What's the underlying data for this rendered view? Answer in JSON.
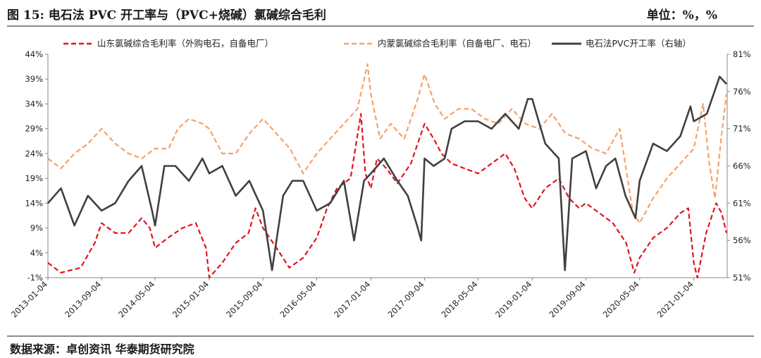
{
  "figure": {
    "title": "图 15:    电石法 PVC 开工率与（PVC+烧碱）氯碱综合毛利",
    "unit": "单位：%，%",
    "source": "数据来源：卓创资讯  华泰期货研究院"
  },
  "chart_data": {
    "type": "line",
    "left_axis": {
      "min": -1,
      "max": 44,
      "ticks": [
        "-1%",
        "4%",
        "9%",
        "14%",
        "19%",
        "24%",
        "29%",
        "34%",
        "39%",
        "44%"
      ]
    },
    "right_axis": {
      "min": 51,
      "max": 81,
      "ticks": [
        "51%",
        "56%",
        "61%",
        "66%",
        "71%",
        "76%",
        "81%"
      ]
    },
    "x_range": [
      "2013-01-04",
      "2021-06-04"
    ],
    "x_ticks": [
      "2013-01-04",
      "2013-09-04",
      "2014-05-04",
      "2015-01-04",
      "2015-09-04",
      "2016-05-04",
      "2017-01-04",
      "2017-09-04",
      "2018-05-04",
      "2019-01-04",
      "2019-09-04",
      "2020-05-04",
      "2021-01-04"
    ],
    "series": [
      {
        "name": "山东氯碱综合毛利率（外购电石，自备电厂）",
        "axis": "left",
        "color": "#e0141e",
        "dash": "dashed",
        "points": [
          [
            "2013-01-04",
            2
          ],
          [
            "2013-03-04",
            0
          ],
          [
            "2013-06-01",
            1
          ],
          [
            "2013-08-04",
            6
          ],
          [
            "2013-09-04",
            10
          ],
          [
            "2013-11-04",
            8
          ],
          [
            "2014-01-04",
            8
          ],
          [
            "2014-03-04",
            11
          ],
          [
            "2014-04-10",
            9
          ],
          [
            "2014-05-04",
            5
          ],
          [
            "2014-07-01",
            7
          ],
          [
            "2014-09-04",
            9
          ],
          [
            "2014-11-04",
            10
          ],
          [
            "2014-12-20",
            5
          ],
          [
            "2015-01-04",
            -1
          ],
          [
            "2015-03-04",
            2
          ],
          [
            "2015-05-04",
            6
          ],
          [
            "2015-07-01",
            8
          ],
          [
            "2015-08-01",
            13
          ],
          [
            "2015-09-04",
            9
          ],
          [
            "2015-11-04",
            5
          ],
          [
            "2016-01-01",
            1
          ],
          [
            "2016-03-04",
            3
          ],
          [
            "2016-05-04",
            7
          ],
          [
            "2016-06-20",
            13
          ],
          [
            "2016-08-04",
            17
          ],
          [
            "2016-10-04",
            19
          ],
          [
            "2016-11-20",
            32
          ],
          [
            "2016-12-10",
            20
          ],
          [
            "2017-01-04",
            17
          ],
          [
            "2017-02-01",
            23
          ],
          [
            "2017-03-15",
            21
          ],
          [
            "2017-05-04",
            18
          ],
          [
            "2017-07-04",
            22
          ],
          [
            "2017-09-04",
            30
          ],
          [
            "2017-10-15",
            27
          ],
          [
            "2017-11-20",
            24
          ],
          [
            "2018-01-04",
            22
          ],
          [
            "2018-03-04",
            21
          ],
          [
            "2018-05-04",
            20
          ],
          [
            "2018-07-04",
            22
          ],
          [
            "2018-09-04",
            24
          ],
          [
            "2018-10-15",
            21
          ],
          [
            "2018-12-01",
            15
          ],
          [
            "2019-01-04",
            13
          ],
          [
            "2019-03-04",
            17
          ],
          [
            "2019-05-04",
            19
          ],
          [
            "2019-06-20",
            15
          ],
          [
            "2019-08-04",
            13
          ],
          [
            "2019-09-04",
            14
          ],
          [
            "2019-11-04",
            12
          ],
          [
            "2020-01-04",
            10
          ],
          [
            "2020-03-04",
            6
          ],
          [
            "2020-04-10",
            0
          ],
          [
            "2020-05-04",
            3
          ],
          [
            "2020-07-04",
            7
          ],
          [
            "2020-09-04",
            9
          ],
          [
            "2020-11-04",
            12
          ],
          [
            "2020-12-10",
            13
          ],
          [
            "2021-01-04",
            2
          ],
          [
            "2021-01-20",
            -1
          ],
          [
            "2021-03-01",
            8
          ],
          [
            "2021-04-15",
            14
          ],
          [
            "2021-05-10",
            12
          ],
          [
            "2021-06-01",
            8
          ]
        ]
      },
      {
        "name": "内蒙氯碱综合毛利率（自备电厂、电石）",
        "axis": "left",
        "color": "#f5a26a",
        "dash": "dashed",
        "points": [
          [
            "2013-01-04",
            23
          ],
          [
            "2013-03-04",
            21
          ],
          [
            "2013-05-04",
            24
          ],
          [
            "2013-07-04",
            26
          ],
          [
            "2013-09-04",
            29
          ],
          [
            "2013-11-04",
            26
          ],
          [
            "2014-01-04",
            24
          ],
          [
            "2014-03-04",
            23
          ],
          [
            "2014-05-04",
            25
          ],
          [
            "2014-07-04",
            25
          ],
          [
            "2014-08-15",
            29
          ],
          [
            "2014-10-04",
            31
          ],
          [
            "2014-12-04",
            30
          ],
          [
            "2015-01-04",
            29
          ],
          [
            "2015-03-04",
            24
          ],
          [
            "2015-05-04",
            24
          ],
          [
            "2015-07-04",
            28
          ],
          [
            "2015-09-04",
            31
          ],
          [
            "2015-11-04",
            28
          ],
          [
            "2016-01-04",
            25
          ],
          [
            "2016-03-04",
            20
          ],
          [
            "2016-05-04",
            24
          ],
          [
            "2016-07-04",
            27
          ],
          [
            "2016-09-04",
            30
          ],
          [
            "2016-11-04",
            33
          ],
          [
            "2016-12-20",
            42
          ],
          [
            "2017-01-04",
            36
          ],
          [
            "2017-02-15",
            27
          ],
          [
            "2017-04-04",
            30
          ],
          [
            "2017-06-04",
            27
          ],
          [
            "2017-08-04",
            35
          ],
          [
            "2017-09-04",
            40
          ],
          [
            "2017-10-20",
            34
          ],
          [
            "2017-12-04",
            31
          ],
          [
            "2018-02-04",
            33
          ],
          [
            "2018-04-04",
            33
          ],
          [
            "2018-06-04",
            31
          ],
          [
            "2018-08-04",
            30
          ],
          [
            "2018-10-04",
            33
          ],
          [
            "2018-12-04",
            30
          ],
          [
            "2019-02-04",
            29
          ],
          [
            "2019-04-04",
            32
          ],
          [
            "2019-06-04",
            28
          ],
          [
            "2019-08-04",
            27
          ],
          [
            "2019-10-04",
            25
          ],
          [
            "2019-12-04",
            24
          ],
          [
            "2020-02-04",
            29
          ],
          [
            "2020-04-04",
            12
          ],
          [
            "2020-05-04",
            10
          ],
          [
            "2020-07-04",
            15
          ],
          [
            "2020-09-04",
            19
          ],
          [
            "2020-11-04",
            22
          ],
          [
            "2021-01-04",
            25
          ],
          [
            "2021-02-15",
            34
          ],
          [
            "2021-03-15",
            22
          ],
          [
            "2021-04-10",
            15
          ],
          [
            "2021-05-10",
            28
          ],
          [
            "2021-06-01",
            36
          ]
        ]
      },
      {
        "name": "电石法PVC开工率（右轴）",
        "axis": "right",
        "color": "#404040",
        "dash": "solid",
        "points": [
          [
            "2013-01-04",
            61
          ],
          [
            "2013-03-04",
            63
          ],
          [
            "2013-05-04",
            58
          ],
          [
            "2013-07-04",
            62
          ],
          [
            "2013-09-04",
            60
          ],
          [
            "2013-11-04",
            61
          ],
          [
            "2014-01-04",
            64
          ],
          [
            "2014-03-04",
            66
          ],
          [
            "2014-04-20",
            60
          ],
          [
            "2014-05-04",
            58
          ],
          [
            "2014-06-15",
            66
          ],
          [
            "2014-08-04",
            66
          ],
          [
            "2014-10-04",
            64
          ],
          [
            "2014-12-04",
            67
          ],
          [
            "2015-01-04",
            65
          ],
          [
            "2015-03-04",
            66
          ],
          [
            "2015-05-04",
            62
          ],
          [
            "2015-07-04",
            64
          ],
          [
            "2015-09-04",
            60
          ],
          [
            "2015-10-15",
            52
          ],
          [
            "2015-12-04",
            62
          ],
          [
            "2016-01-15",
            64
          ],
          [
            "2016-03-04",
            64
          ],
          [
            "2016-05-04",
            60
          ],
          [
            "2016-07-04",
            61
          ],
          [
            "2016-09-04",
            64
          ],
          [
            "2016-10-20",
            56
          ],
          [
            "2016-12-04",
            64
          ],
          [
            "2017-01-04",
            65
          ],
          [
            "2017-03-04",
            67
          ],
          [
            "2017-05-04",
            64
          ],
          [
            "2017-06-20",
            62
          ],
          [
            "2017-08-01",
            58
          ],
          [
            "2017-08-20",
            56
          ],
          [
            "2017-09-04",
            67
          ],
          [
            "2017-10-15",
            66
          ],
          [
            "2017-12-04",
            67
          ],
          [
            "2018-01-04",
            71
          ],
          [
            "2018-03-04",
            72
          ],
          [
            "2018-05-04",
            72
          ],
          [
            "2018-07-04",
            71
          ],
          [
            "2018-09-04",
            73
          ],
          [
            "2018-11-04",
            71
          ],
          [
            "2018-12-15",
            75
          ],
          [
            "2019-01-04",
            75
          ],
          [
            "2019-03-04",
            69
          ],
          [
            "2019-05-04",
            67
          ],
          [
            "2019-06-01",
            52
          ],
          [
            "2019-07-04",
            67
          ],
          [
            "2019-09-04",
            68
          ],
          [
            "2019-10-20",
            63
          ],
          [
            "2019-12-04",
            66
          ],
          [
            "2020-01-15",
            67
          ],
          [
            "2020-03-01",
            62
          ],
          [
            "2020-04-15",
            59
          ],
          [
            "2020-05-04",
            64
          ],
          [
            "2020-07-04",
            69
          ],
          [
            "2020-09-04",
            68
          ],
          [
            "2020-11-04",
            70
          ],
          [
            "2020-12-20",
            74
          ],
          [
            "2021-01-04",
            72
          ],
          [
            "2021-03-04",
            73
          ],
          [
            "2021-05-01",
            78
          ],
          [
            "2021-06-01",
            77
          ]
        ]
      }
    ],
    "legend_position": "top"
  }
}
